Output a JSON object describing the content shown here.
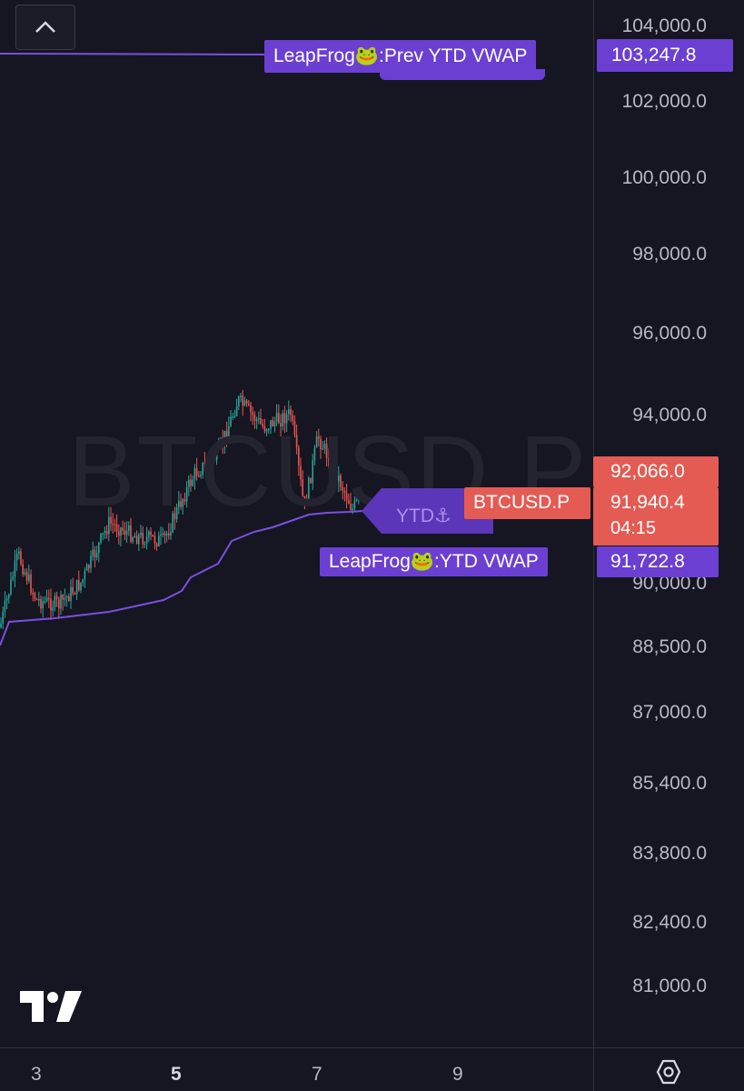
{
  "symbol_watermark": "BTCUSD.P",
  "price_axis": [
    "104,000.0",
    "102,000.0",
    "100,000.0",
    "98,000.0",
    "96,000.0",
    "94,000.0",
    "90,000.0",
    "88,500.0",
    "87,000.0",
    "85,400.0",
    "83,800.0",
    "82,400.0",
    "81,000.0"
  ],
  "time_axis": [
    {
      "label": "3",
      "bold": false
    },
    {
      "label": "5",
      "bold": true
    },
    {
      "label": "7",
      "bold": false
    },
    {
      "label": "9",
      "bold": false
    }
  ],
  "tags": {
    "prev_vwap_label": "LeapFrog🐸:Prev YTD VWAP",
    "prev_vwap_price": "103,247.8",
    "ytd_label": "YTD⚓",
    "symbol_label": "BTCUSD.P",
    "last_price_top": "92,066.0",
    "last_price": "91,940.4",
    "countdown": "04:15",
    "vwap_label": "LeapFrog🐸:YTD VWAP",
    "vwap_price": "91,722.8"
  },
  "colors": {
    "up": "#26a69a",
    "down": "#ef5350",
    "vwap": "#7b4fe0",
    "tag_purple": "#6b3fd1",
    "last_price_red": "#e35b53"
  },
  "icons": {
    "collapse": "chevron-up-icon",
    "logo": "tradingview-logo",
    "settings": "settings-icon"
  }
}
